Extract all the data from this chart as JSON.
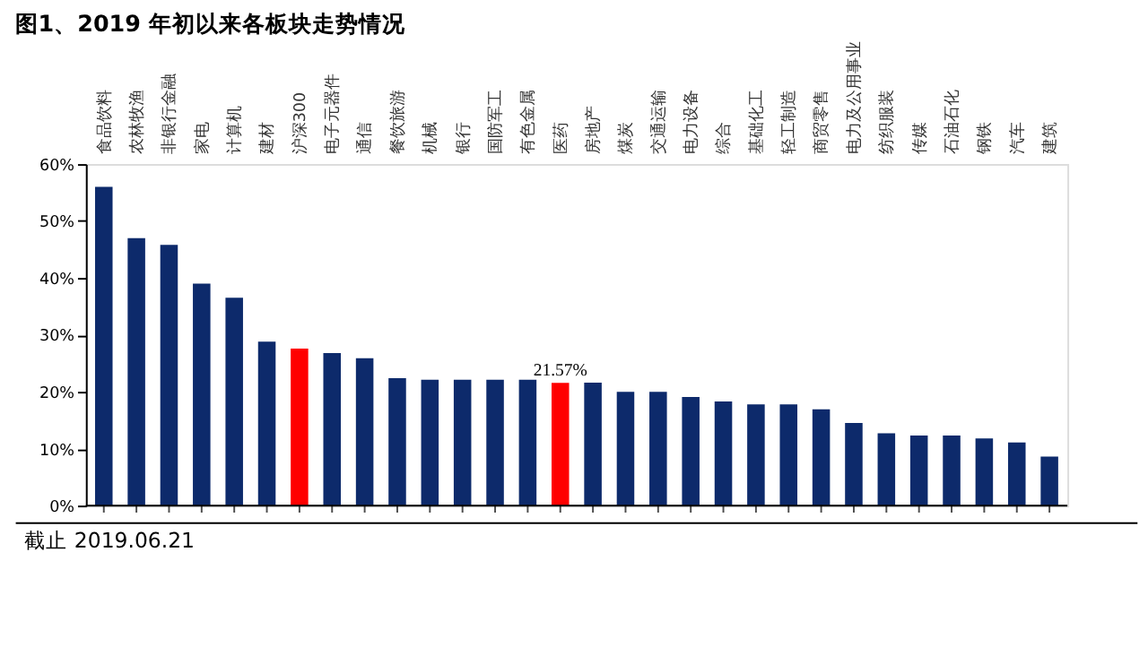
{
  "chart_data": {
    "type": "bar",
    "title": "图1、2019 年初以来各板块走势情况",
    "categories": [
      "食品饮料",
      "农林牧渔",
      "非银行金融",
      "家电",
      "计算机",
      "建材",
      "沪深300",
      "电子元器件",
      "通信",
      "餐饮旅游",
      "机械",
      "银行",
      "国防军工",
      "有色金属",
      "医药",
      "房地产",
      "煤炭",
      "交通运输",
      "电力设备",
      "综合",
      "基础化工",
      "轻工制造",
      "商贸零售",
      "电力及公用事业",
      "纺织服装",
      "传媒",
      "石油石化",
      "钢铁",
      "汽车",
      "建筑"
    ],
    "values": [
      56.0,
      47.0,
      45.8,
      39.0,
      36.5,
      28.8,
      27.6,
      26.8,
      25.9,
      22.4,
      22.1,
      22.1,
      22.1,
      22.1,
      21.57,
      21.6,
      20.0,
      20.0,
      19.1,
      18.3,
      17.8,
      17.8,
      16.9,
      14.5,
      12.7,
      12.3,
      12.3,
      11.8,
      11.1,
      8.6
    ],
    "colors": [
      "#0d2a6b",
      "#0d2a6b",
      "#0d2a6b",
      "#0d2a6b",
      "#0d2a6b",
      "#0d2a6b",
      "#ff0000",
      "#0d2a6b",
      "#0d2a6b",
      "#0d2a6b",
      "#0d2a6b",
      "#0d2a6b",
      "#0d2a6b",
      "#0d2a6b",
      "#ff0000",
      "#0d2a6b",
      "#0d2a6b",
      "#0d2a6b",
      "#0d2a6b",
      "#0d2a6b",
      "#0d2a6b",
      "#0d2a6b",
      "#0d2a6b",
      "#0d2a6b",
      "#0d2a6b",
      "#0d2a6b",
      "#0d2a6b",
      "#0d2a6b",
      "#0d2a6b",
      "#0d2a6b"
    ],
    "value_labels": [
      null,
      null,
      null,
      null,
      null,
      null,
      null,
      null,
      null,
      null,
      null,
      null,
      null,
      null,
      "21.57%",
      null,
      null,
      null,
      null,
      null,
      null,
      null,
      null,
      null,
      null,
      null,
      null,
      null,
      null,
      null
    ],
    "ylim": [
      0,
      60
    ],
    "yticks": [
      {
        "value": 0,
        "label": "0%"
      },
      {
        "value": 10,
        "label": "10%"
      },
      {
        "value": 20,
        "label": "20%"
      },
      {
        "value": 30,
        "label": "30%"
      },
      {
        "value": 40,
        "label": "40%"
      },
      {
        "value": 50,
        "label": "50%"
      },
      {
        "value": 60,
        "label": "60%"
      }
    ],
    "grid": false,
    "annotations": [
      "截止 2019.06.21"
    ]
  }
}
